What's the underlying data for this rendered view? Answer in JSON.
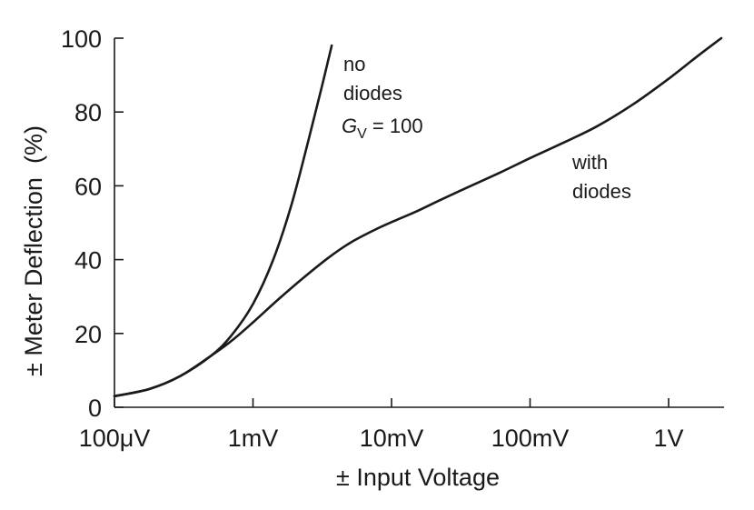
{
  "chart_data": {
    "type": "line",
    "title": "",
    "xlabel": "± Input Voltage",
    "ylabel": "± Meter Deflection  (%)",
    "x_scale": "log",
    "x_unit": "V",
    "xlim": [
      0.0001,
      2.8
    ],
    "ylim": [
      0,
      100
    ],
    "x_ticks": [
      {
        "value": 0.0001,
        "label": "100μV"
      },
      {
        "value": 0.001,
        "label": "1mV"
      },
      {
        "value": 0.01,
        "label": "10mV"
      },
      {
        "value": 0.1,
        "label": "100mV"
      },
      {
        "value": 1,
        "label": "1V"
      }
    ],
    "y_ticks": [
      {
        "value": 0,
        "label": "0"
      },
      {
        "value": 20,
        "label": "20"
      },
      {
        "value": 40,
        "label": "40"
      },
      {
        "value": 60,
        "label": "60"
      },
      {
        "value": 80,
        "label": "80"
      },
      {
        "value": 100,
        "label": "100"
      }
    ],
    "grid": false,
    "legend": "none",
    "series": [
      {
        "id": "no-diodes",
        "x": [
          0.0001,
          0.00018,
          0.0003,
          0.0005,
          0.0007,
          0.001,
          0.0014,
          0.0019,
          0.0025,
          0.0031,
          0.0037
        ],
        "y": [
          3,
          5,
          8.5,
          14,
          19.5,
          28,
          40,
          55,
          72,
          86,
          98
        ]
      },
      {
        "id": "with-diodes",
        "x": [
          0.0001,
          0.00018,
          0.0003,
          0.0005,
          0.0007,
          0.001,
          0.0015,
          0.0023,
          0.0035,
          0.005,
          0.0075,
          0.0105,
          0.015,
          0.022,
          0.035,
          0.06,
          0.1,
          0.17,
          0.3,
          0.55,
          1,
          1.6,
          2.4
        ],
        "y": [
          3,
          5,
          8.5,
          14,
          18,
          23,
          29,
          35,
          40.5,
          44.5,
          48,
          50.5,
          53,
          56,
          59.5,
          63.5,
          67.5,
          71.5,
          76,
          82,
          89,
          95,
          100
        ]
      }
    ],
    "annotations": {
      "no_diodes": {
        "line1": "no",
        "line2": "diodes",
        "gain_symbol": "G",
        "gain_subscript": "V",
        "gain_value": " = 100"
      },
      "with_diodes": {
        "line1": "with",
        "line2": "diodes"
      }
    }
  },
  "style": {
    "curve_color": "#1a1a1a",
    "axis_color": "#1a1a1a",
    "background": "#ffffff"
  }
}
